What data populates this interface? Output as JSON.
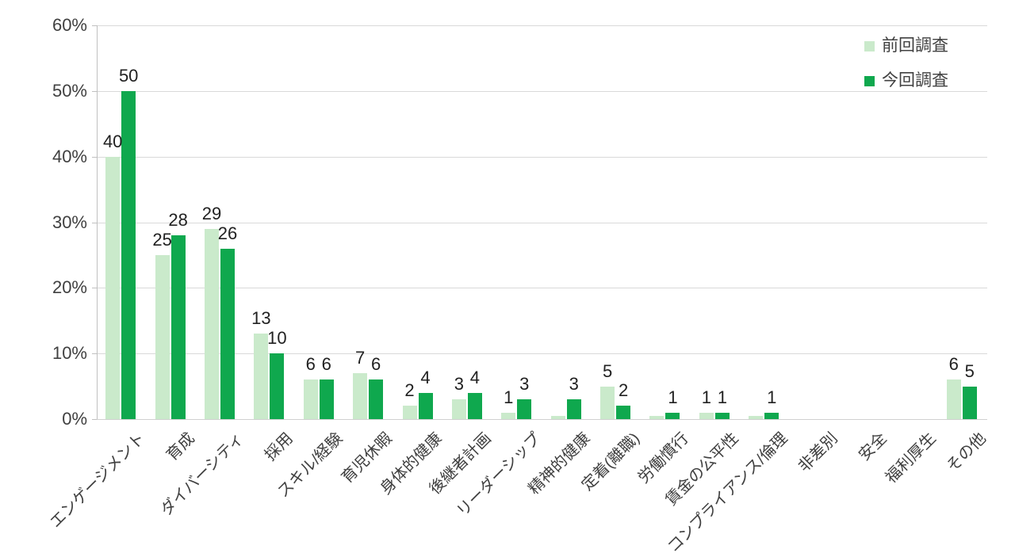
{
  "chart_data": {
    "type": "bar",
    "title": "",
    "categories": [
      "エンゲージメント",
      "育成",
      "ダイバーシティ",
      "採用",
      "スキル/経験",
      "育児休暇",
      "身体的健康",
      "後継者計画",
      "リーダーシップ",
      "精神的健康",
      "定着(離職)",
      "労働慣行",
      "賃金の公平性",
      "コンプライアンス/倫理",
      "非差別",
      "安全",
      "福利厚生",
      "その他"
    ],
    "series": [
      {
        "name": "前回調査",
        "color": "#caeacb",
        "values": [
          40,
          25,
          29,
          13,
          6,
          7,
          2,
          3,
          1,
          0.5,
          5,
          0.5,
          1,
          0.5,
          0,
          0,
          0,
          6
        ],
        "labels": [
          "40",
          "25",
          "29",
          "13",
          "6",
          "7",
          "2",
          "3",
          "1",
          "",
          "5",
          "",
          "1",
          "",
          "",
          "",
          "",
          "6"
        ]
      },
      {
        "name": "今回調査",
        "color": "#0fa84e",
        "values": [
          50,
          28,
          26,
          10,
          6,
          6,
          4,
          4,
          3,
          3,
          2,
          1,
          1,
          1,
          0,
          0,
          0,
          5
        ],
        "labels": [
          "50",
          "28",
          "26",
          "10",
          "6",
          "6",
          "4",
          "4",
          "3",
          "3",
          "2",
          "1",
          "1",
          "1",
          "",
          "",
          "",
          "5"
        ]
      }
    ],
    "y_ticks": [
      "0%",
      "10%",
      "20%",
      "30%",
      "40%",
      "50%",
      "60%"
    ],
    "ylim": [
      0,
      60
    ],
    "grid": true,
    "legend_position": "top-right",
    "colors": {
      "gridline": "#d9d9d9",
      "axis": "#c0c0c0",
      "axis_text": "#404040",
      "data_label_text": "#212121"
    }
  }
}
